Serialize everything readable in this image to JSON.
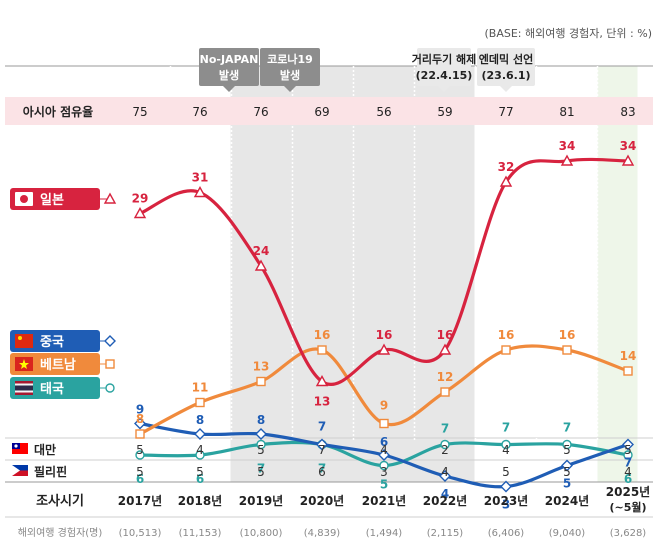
{
  "base_note": "(BASE: 해외여행 경험자, 단위 : %)",
  "events": [
    {
      "label_lines": [
        "No-JAPAN",
        "발생"
      ],
      "start_index": 2,
      "end_index": 3
    },
    {
      "label_lines": [
        "코로나19",
        "발생"
      ],
      "start_index": 3,
      "end_index": 6
    },
    {
      "label_lines": [
        "거리두기 해제",
        "(22.4.15)"
      ],
      "start_index": 5,
      "end_index": 6
    },
    {
      "label_lines": [
        "엔데믹 선언",
        "(23.6.1)"
      ],
      "start_index": 6,
      "end_index": 7
    }
  ],
  "asia_share": {
    "label": "아시아 점유율",
    "values": [
      75,
      76,
      76,
      69,
      56,
      59,
      77,
      81,
      83
    ]
  },
  "chart_data": {
    "type": "line",
    "categories": [
      "2017년",
      "2018년",
      "2019년",
      "2020년",
      "2021년",
      "2022년",
      "2023년",
      "2024년",
      "2025년"
    ],
    "category_sublabels": [
      "",
      "",
      "",
      "",
      "",
      "",
      "",
      "",
      "(~5월)"
    ],
    "series": [
      {
        "name": "일본",
        "values": [
          29,
          31,
          24,
          13,
          16,
          16,
          32,
          34,
          34
        ],
        "color": "#d7233f",
        "marker": "triangle"
      },
      {
        "name": "베트남",
        "values": [
          8,
          11,
          13,
          16,
          9,
          12,
          16,
          16,
          14
        ],
        "color": "#f08a3c",
        "marker": "square"
      },
      {
        "name": "중국",
        "values": [
          9,
          8,
          8,
          7,
          6,
          4,
          3,
          5,
          7
        ],
        "color": "#1f5db5",
        "marker": "diamond"
      },
      {
        "name": "태국",
        "values": [
          6,
          6,
          7,
          7,
          5,
          7,
          7,
          7,
          6
        ],
        "color": "#2aa3a0",
        "marker": "circle"
      }
    ]
  },
  "bottom_rows": [
    {
      "name": "대만",
      "flag": "taiwan-flag-icon",
      "values": [
        5,
        4,
        5,
        7,
        4,
        2,
        4,
        5,
        5
      ]
    },
    {
      "name": "필리핀",
      "flag": "philippines-flag-icon",
      "values": [
        5,
        5,
        5,
        6,
        3,
        4,
        5,
        5,
        4
      ]
    }
  ],
  "survey_label": "조사시기",
  "respondents_label": "해외여행 경험자(명)",
  "respondents": [
    "(10,513)",
    "(11,153)",
    "(10,800)",
    "(4,839)",
    "(1,494)",
    "(2,115)",
    "(6,406)",
    "(9,040)",
    "(3,628)"
  ],
  "colors": {
    "shade": "#e7e7e7",
    "highlight": "#eef6e9",
    "share_band": "#fbe3e6",
    "japan": "#d7233f",
    "vietnam": "#f08a3c",
    "china": "#1f5db5",
    "thailand": "#2aa3a0",
    "event_box": "#8d8d8d"
  }
}
